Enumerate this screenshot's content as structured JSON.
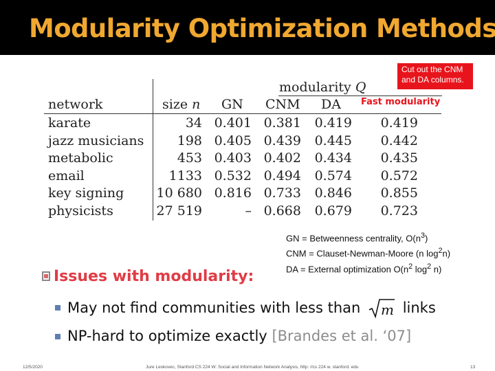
{
  "slide": {
    "title": "Modularity Optimization Methods",
    "note": "Cut out the CNM and DA columns.",
    "fast_label": "Fast modularity",
    "table": {
      "group_header": "modularity Q",
      "columns": [
        "network",
        "size n",
        "GN",
        "CNM",
        "DA"
      ],
      "rows": [
        {
          "network": "karate",
          "size": "34",
          "gn": "0.401",
          "cnm": "0.381",
          "da": "0.419",
          "fast": "0.419"
        },
        {
          "network": "jazz musicians",
          "size": "198",
          "gn": "0.405",
          "cnm": "0.439",
          "da": "0.445",
          "fast": "0.442"
        },
        {
          "network": "metabolic",
          "size": "453",
          "gn": "0.403",
          "cnm": "0.402",
          "da": "0.434",
          "fast": "0.435"
        },
        {
          "network": "email",
          "size": "1133",
          "gn": "0.532",
          "cnm": "0.494",
          "da": "0.574",
          "fast": "0.572"
        },
        {
          "network": "key signing",
          "size": "10 680",
          "gn": "0.816",
          "cnm": "0.733",
          "da": "0.846",
          "fast": "0.855"
        },
        {
          "network": "physicists",
          "size": "27 519",
          "gn": "–",
          "cnm": "0.668",
          "da": "0.679",
          "fast": "0.723"
        }
      ]
    },
    "legend": [
      {
        "pre": "GN = Betweenness centrality, O(n",
        "sup1": "3",
        "mid": ")",
        "sup2": "",
        "post": ""
      },
      {
        "pre": "CNM = Clauset-Newman-Moore (n log",
        "sup1": "2",
        "mid": "n)",
        "sup2": "",
        "post": ""
      },
      {
        "pre": "DA = External optimization O(n",
        "sup1": "2",
        "mid": " log",
        "sup2": "2",
        "post": " n)"
      }
    ],
    "issues_heading": "Issues with modularity:",
    "bullets": [
      {
        "pre": "May not find communities with less than",
        "sqrt_var": "m",
        "post": "links"
      },
      {
        "text": "NP-hard to optimize exactly",
        "cite": "[Brandes et al. ‘07]"
      }
    ],
    "footer": {
      "date": "12/5/2020",
      "credit": "Jure Leskovec, Stanford CS 224 W: Social and Information Network Analysis, http: //cs 224 w. stanford. edu",
      "page": "13"
    },
    "colors": {
      "header_bg": "#000000",
      "title": "#f0a830",
      "accent_red": "#e8141c",
      "heading_red": "#e03c46",
      "bullet_blue": "#5f7fb3"
    }
  }
}
